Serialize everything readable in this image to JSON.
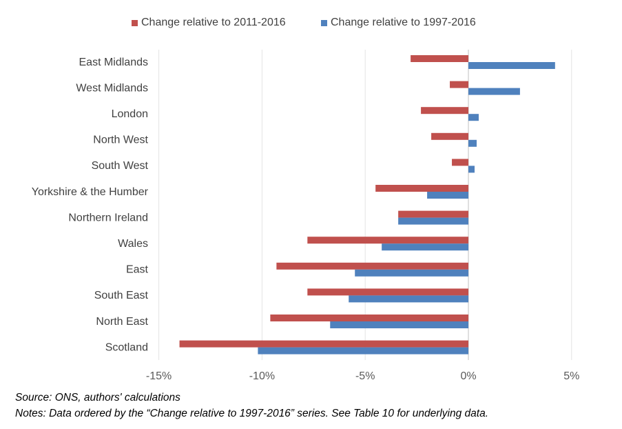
{
  "chart_data": {
    "type": "bar",
    "orientation": "horizontal",
    "categories": [
      "East Midlands",
      "West Midlands",
      "London",
      "North West",
      "South West",
      "Yorkshire & the Humber",
      "Northern Ireland",
      "Wales",
      "East",
      "South East",
      "North East",
      "Scotland"
    ],
    "series": [
      {
        "name": "Change relative to 2011-2016",
        "color": "#c0504d",
        "values": [
          -2.8,
          -0.9,
          -2.3,
          -1.8,
          -0.8,
          -4.5,
          -3.4,
          -7.8,
          -9.3,
          -7.8,
          -9.6,
          -14.0
        ]
      },
      {
        "name": "Change relative to 1997-2016",
        "color": "#4f81bd",
        "values": [
          4.2,
          2.5,
          0.5,
          0.4,
          0.3,
          -2.0,
          -3.4,
          -4.2,
          -5.5,
          -5.8,
          -6.7,
          -10.2
        ]
      }
    ],
    "x_ticks": [
      "-15%",
      "-10%",
      "-5%",
      "0%",
      "5%"
    ],
    "xlim": [
      -15,
      5
    ],
    "grid": "vertical",
    "legend_position": "top"
  },
  "footer": {
    "source": "Source: ONS, authors' calculations",
    "notes": "Notes: Data ordered by the “Change relative to 1997-2016” series. See Table 10 for underlying data."
  }
}
